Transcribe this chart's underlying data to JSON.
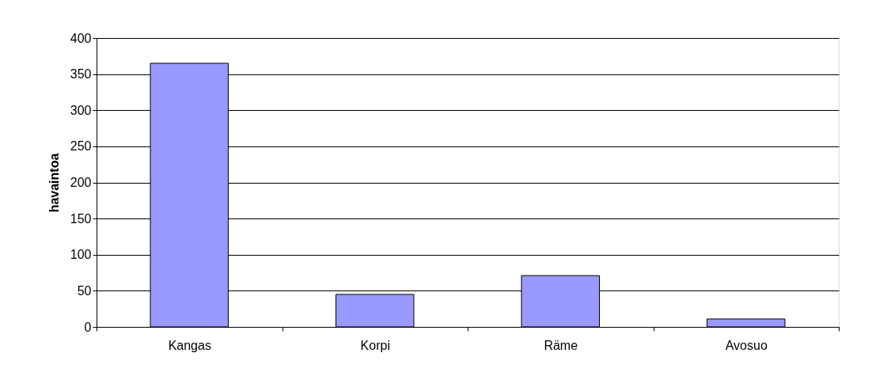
{
  "chart_data": {
    "type": "bar",
    "ylabel": "havaintoa",
    "categories": [
      "Kangas",
      "Korpi",
      "Räme",
      "Avosuo"
    ],
    "values": [
      365,
      45,
      71,
      11
    ],
    "color": "#9999ff",
    "ylim": [
      0,
      400
    ],
    "yticks": [
      0,
      50,
      100,
      150,
      200,
      250,
      300,
      350,
      400
    ],
    "grid": "y"
  }
}
